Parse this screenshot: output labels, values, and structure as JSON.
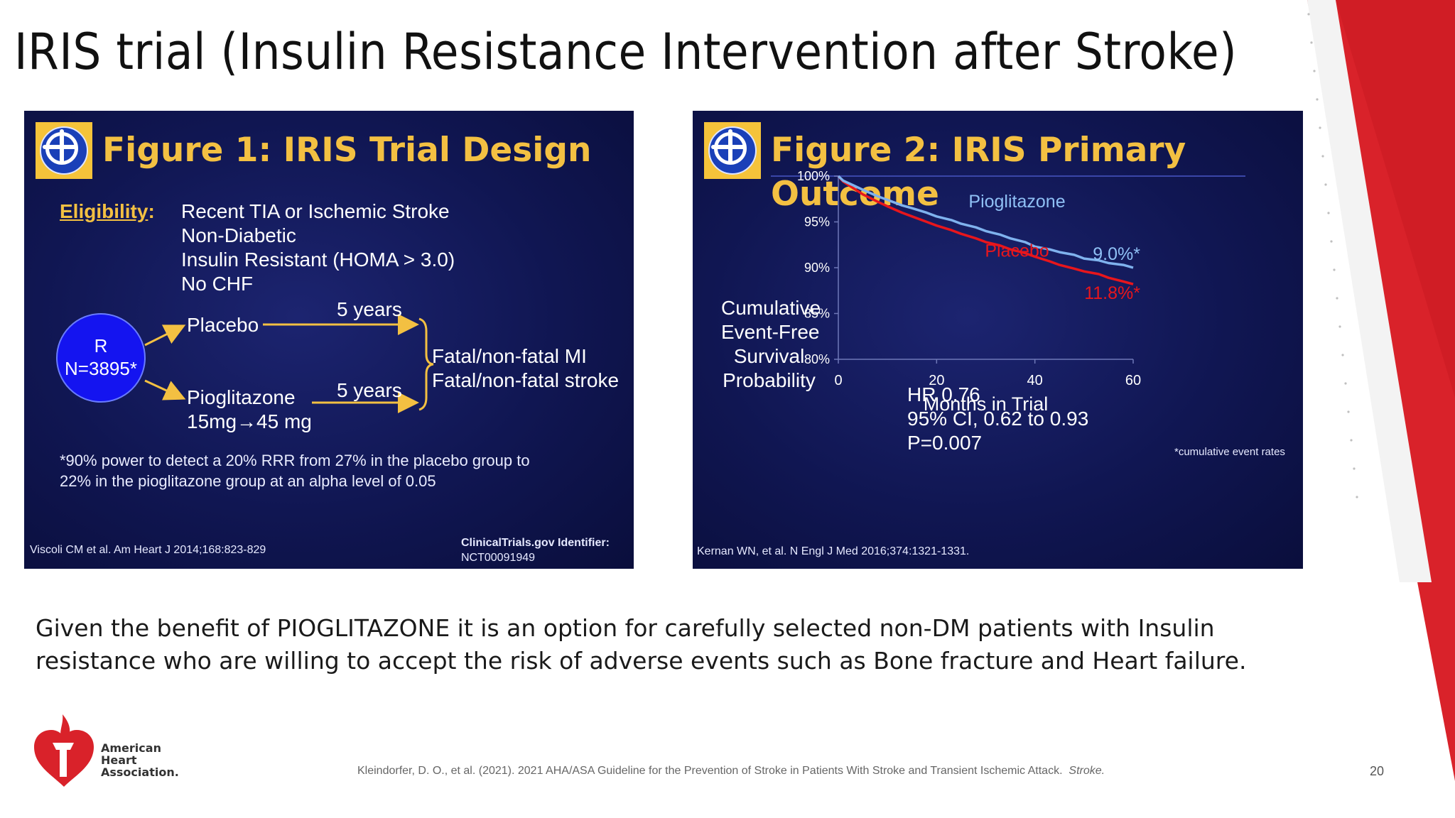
{
  "slide": {
    "title": "IRIS trial (Insulin Resistance Intervention after Stroke)",
    "body_text": "Given the benefit of PIOGLITAZONE it is an option for carefully selected non-DM patients with Insulin resistance who are willing to accept the risk of adverse events such as Bone fracture and Heart failure.",
    "footer_citation": "Kleindorfer, D. O., et al. (2021).  2021 AHA/ASA Guideline for the Prevention of Stroke in Patients With Stroke and Transient Ischemic Attack.",
    "footer_journal": "Stroke.",
    "page_number": "20",
    "org_name": [
      "American",
      "Heart",
      "Association."
    ],
    "colors": {
      "accent_red": "#d9222a",
      "panel_navy": "#101652",
      "figure_gold": "#f3c042"
    }
  },
  "figure1": {
    "title": "Figure 1: IRIS Trial Design",
    "eligibility_label": "Eligibility",
    "eligibility_colon": ":",
    "criteria": [
      "Recent TIA or Ischemic Stroke",
      "Non-Diabetic",
      "Insulin Resistant (HOMA > 3.0)",
      "No CHF"
    ],
    "randomization": {
      "letter": "R",
      "n": "N=3895*"
    },
    "arms": [
      {
        "label": "Placebo",
        "duration": "5 years"
      },
      {
        "label": "Pioglitazone",
        "dose": "15mg→45 mg",
        "duration": "5 years"
      }
    ],
    "outcomes": [
      "Fatal/non-fatal  MI",
      "Fatal/non-fatal  stroke"
    ],
    "footnote": [
      "*90% power to detect a 20% RRR from 27% in the placebo group to",
      "22% in the pioglitazone  group at an alpha level of 0.05"
    ],
    "citation": "Viscoli CM et al. Am Heart J 2014;168:823-829",
    "trial_id_label": "ClinicalTrials.gov Identifier:",
    "trial_id": "NCT00091949"
  },
  "figure2": {
    "title_line1": "Figure 2: IRIS Primary",
    "title_line2": "Outcome",
    "ylabel_lines": [
      "Cumulative",
      "Event-Free",
      "Survival",
      "Probability"
    ],
    "stats": [
      "HR 0.76",
      "95% CI, 0.62 to 0.93",
      "P=0.007"
    ],
    "footnote": "*cumulative  event rates",
    "citation": "Kernan WN, et al. N Engl J Med 2016;374:1321-1331.",
    "chart_data": {
      "type": "line",
      "xlabel": "Months in Trial",
      "ylabel": "Cumulative Event-Free Survival Probability",
      "xlim": [
        0,
        60
      ],
      "ylim": [
        80,
        100
      ],
      "x_ticks": [
        0,
        20,
        40,
        60
      ],
      "y_ticks": [
        "100%",
        "95%",
        "90%",
        "85%",
        "80%"
      ],
      "y_tick_values": [
        100,
        95,
        90,
        85,
        80
      ],
      "series": [
        {
          "name": "Pioglitazone",
          "color": "#7fb2ee",
          "end_label": "9.0%*",
          "x": [
            0,
            1,
            3,
            5,
            8,
            10,
            13,
            15,
            18,
            20,
            23,
            25,
            28,
            30,
            33,
            35,
            38,
            40,
            43,
            45,
            48,
            50,
            53,
            55,
            58,
            60
          ],
          "y": [
            100,
            99.5,
            99.0,
            98.5,
            97.8,
            97.4,
            96.8,
            96.5,
            96.0,
            95.6,
            95.2,
            94.8,
            94.4,
            94.0,
            93.6,
            93.2,
            92.8,
            92.3,
            92.0,
            91.7,
            91.4,
            91.0,
            90.8,
            90.5,
            90.3,
            90.0
          ]
        },
        {
          "name": "Placebo",
          "color": "#e8161c",
          "end_label": "11.8%*",
          "x": [
            0,
            1,
            3,
            5,
            8,
            10,
            13,
            15,
            18,
            20,
            23,
            25,
            28,
            30,
            33,
            35,
            38,
            40,
            43,
            45,
            48,
            50,
            53,
            55,
            58,
            60
          ],
          "y": [
            100,
            99.4,
            98.7,
            98.0,
            97.2,
            96.7,
            96.0,
            95.6,
            95.0,
            94.6,
            94.1,
            93.7,
            93.2,
            92.8,
            92.4,
            92.0,
            91.6,
            91.2,
            90.7,
            90.3,
            89.9,
            89.6,
            89.3,
            88.9,
            88.5,
            88.2
          ]
        }
      ]
    }
  }
}
